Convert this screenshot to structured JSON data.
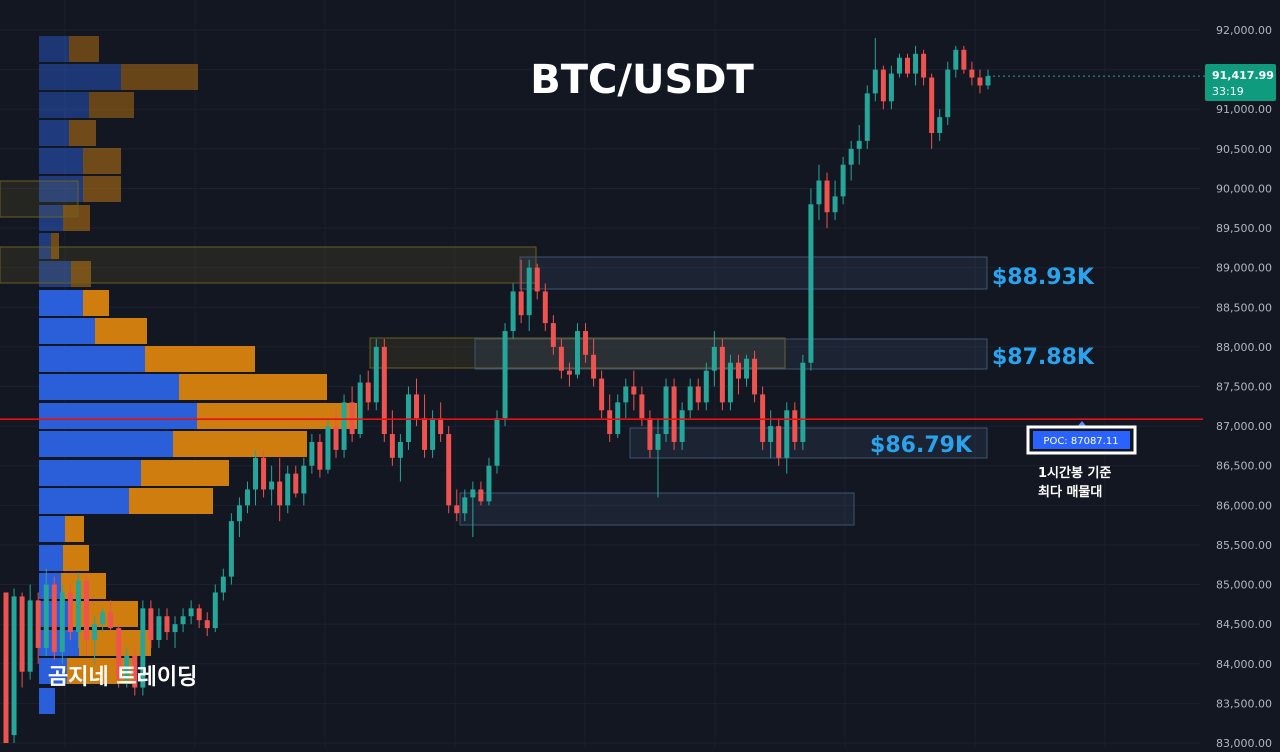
{
  "chart_data": {
    "type": "candlestick",
    "title": "BTC/USDT",
    "watermark": "곰지네 트레이딩",
    "y_axis": {
      "ticks": [
        92000,
        91500,
        91000,
        90500,
        90000,
        89500,
        89000,
        88500,
        88000,
        87500,
        87000,
        86500,
        86000,
        85500,
        85000,
        84500,
        84000,
        83500,
        83000
      ],
      "tick_labels": [
        "92,000.00",
        "91,500.00",
        "91,000.00",
        "90,500.00",
        "90,000.00",
        "89,500.00",
        "89,000.00",
        "88,500.00",
        "88,000.00",
        "87,500.00",
        "87,000.00",
        "86,500.00",
        "86,000.00",
        "85,500.00",
        "85,000.00",
        "84,500.00",
        "84,000.00",
        "83,500.00",
        "83,000.00"
      ],
      "range": [
        83000,
        92000
      ]
    },
    "last_price": {
      "value": 91417.99,
      "label": "91,417.99",
      "countdown": "33:19"
    },
    "poc": {
      "value": 87087.11,
      "label": "POC: 87087.11",
      "note_line1": "1시간봉 기준",
      "note_line2": "최다 매물대"
    },
    "levels": [
      {
        "label": "$88.93K",
        "low": 88730,
        "high": 89130
      },
      {
        "label": "$87.88K",
        "low": 87730,
        "high": 88090
      },
      {
        "label": "$86.79K",
        "low": 86620,
        "high": 86980
      }
    ],
    "candles": [
      [
        84900,
        84900,
        83000,
        83000
      ],
      [
        83100,
        84950,
        83000,
        84850
      ],
      [
        84850,
        84900,
        83700,
        83900
      ],
      [
        83900,
        85000,
        83800,
        84800
      ],
      [
        84800,
        84900,
        84000,
        84200
      ],
      [
        84200,
        85200,
        84100,
        85000
      ],
      [
        85000,
        85100,
        84050,
        84150
      ],
      [
        84150,
        85000,
        84000,
        84900
      ],
      [
        84900,
        85000,
        84300,
        84400
      ],
      [
        84400,
        85150,
        84200,
        85050
      ],
      [
        85050,
        85100,
        84100,
        84300
      ],
      [
        84300,
        84600,
        84000,
        84500
      ],
      [
        84500,
        84700,
        84400,
        84650
      ],
      [
        84650,
        84800,
        84400,
        84450
      ],
      [
        84450,
        84500,
        83700,
        83800
      ],
      [
        83800,
        84200,
        83700,
        84100
      ],
      [
        84100,
        84200,
        83600,
        83700
      ],
      [
        83700,
        84800,
        83600,
        84700
      ],
      [
        84700,
        84800,
        84200,
        84300
      ],
      [
        84300,
        84700,
        84200,
        84600
      ],
      [
        84600,
        84700,
        84300,
        84400
      ],
      [
        84400,
        84600,
        84200,
        84500
      ],
      [
        84500,
        84700,
        84400,
        84600
      ],
      [
        84600,
        84800,
        84500,
        84700
      ],
      [
        84700,
        84750,
        84450,
        84550
      ],
      [
        84550,
        84650,
        84350,
        84450
      ],
      [
        84450,
        85000,
        84400,
        84900
      ],
      [
        84900,
        85200,
        84800,
        85100
      ],
      [
        85100,
        85900,
        85000,
        85800
      ],
      [
        85800,
        86100,
        85600,
        86000
      ],
      [
        86000,
        86300,
        85900,
        86200
      ],
      [
        86200,
        86700,
        86000,
        86600
      ],
      [
        86600,
        86700,
        86100,
        86200
      ],
      [
        86200,
        86500,
        86000,
        86300
      ],
      [
        86300,
        86600,
        85800,
        86000
      ],
      [
        86000,
        86500,
        85900,
        86400
      ],
      [
        86400,
        86500,
        86100,
        86150
      ],
      [
        86150,
        86600,
        86000,
        86500
      ],
      [
        86500,
        86900,
        86400,
        86800
      ],
      [
        86800,
        86900,
        86350,
        86450
      ],
      [
        86450,
        87100,
        86400,
        87000
      ],
      [
        87000,
        87200,
        86600,
        86700
      ],
      [
        86700,
        87400,
        86600,
        87300
      ],
      [
        87300,
        87500,
        86800,
        86900
      ],
      [
        86900,
        87650,
        86850,
        87550
      ],
      [
        87550,
        87700,
        87200,
        87300
      ],
      [
        87300,
        88100,
        87200,
        88000
      ],
      [
        88000,
        88100,
        86800,
        86900
      ],
      [
        86900,
        87200,
        86500,
        86600
      ],
      [
        86600,
        86900,
        86300,
        86800
      ],
      [
        86800,
        87500,
        86700,
        87400
      ],
      [
        87400,
        87600,
        87000,
        87100
      ],
      [
        87100,
        87400,
        86600,
        86700
      ],
      [
        86700,
        87200,
        86600,
        87100
      ],
      [
        87100,
        87300,
        86800,
        86900
      ],
      [
        86900,
        87000,
        85900,
        86000
      ],
      [
        86000,
        86200,
        85800,
        85900
      ],
      [
        85900,
        86200,
        85800,
        86100
      ],
      [
        86100,
        86300,
        85600,
        86200
      ],
      [
        86200,
        86300,
        86000,
        86050
      ],
      [
        86050,
        86600,
        86000,
        86500
      ],
      [
        86500,
        87200,
        86400,
        87100
      ],
      [
        87100,
        88300,
        87000,
        88200
      ],
      [
        88200,
        88800,
        88100,
        88700
      ],
      [
        88700,
        89100,
        88300,
        88400
      ],
      [
        88400,
        89100,
        88200,
        89000
      ],
      [
        89000,
        89050,
        88600,
        88700
      ],
      [
        88700,
        88800,
        88200,
        88300
      ],
      [
        88300,
        88400,
        87900,
        88000
      ],
      [
        88000,
        88100,
        87600,
        87700
      ],
      [
        87700,
        87800,
        87500,
        87650
      ],
      [
        87650,
        88300,
        87600,
        88200
      ],
      [
        88200,
        88300,
        87800,
        87900
      ],
      [
        87900,
        88100,
        87500,
        87600
      ],
      [
        87600,
        87700,
        87100,
        87200
      ],
      [
        87200,
        87400,
        86800,
        86900
      ],
      [
        86900,
        87400,
        86850,
        87300
      ],
      [
        87300,
        87600,
        87100,
        87500
      ],
      [
        87500,
        87700,
        87200,
        87400
      ],
      [
        87400,
        87500,
        87000,
        87100
      ],
      [
        87100,
        87200,
        86600,
        86700
      ],
      [
        86700,
        87100,
        86100,
        86900
      ],
      [
        86900,
        87600,
        86800,
        87500
      ],
      [
        87500,
        87600,
        86700,
        86800
      ],
      [
        86800,
        87300,
        86700,
        87200
      ],
      [
        87200,
        87600,
        87100,
        87500
      ],
      [
        87500,
        87600,
        87200,
        87300
      ],
      [
        87300,
        87800,
        87200,
        87700
      ],
      [
        87700,
        88200,
        87500,
        88000
      ],
      [
        88000,
        88100,
        87200,
        87300
      ],
      [
        87300,
        87900,
        87200,
        87800
      ],
      [
        87800,
        87900,
        87400,
        87600
      ],
      [
        87600,
        87900,
        87500,
        87850
      ],
      [
        87850,
        87950,
        87300,
        87400
      ],
      [
        87400,
        87500,
        86700,
        86800
      ],
      [
        86800,
        87200,
        86600,
        87000
      ],
      [
        87000,
        87100,
        86500,
        86600
      ],
      [
        86600,
        87300,
        86400,
        87200
      ],
      [
        87200,
        87300,
        86700,
        86800
      ],
      [
        86800,
        87900,
        86700,
        87800
      ],
      [
        87800,
        90000,
        87700,
        89800
      ],
      [
        89800,
        90300,
        89600,
        90100
      ],
      [
        90100,
        90200,
        89500,
        89700
      ],
      [
        89700,
        90100,
        89600,
        89900
      ],
      [
        89900,
        90400,
        89800,
        90300
      ],
      [
        90300,
        90600,
        90100,
        90500
      ],
      [
        90500,
        90800,
        90300,
        90600
      ],
      [
        90600,
        91300,
        90500,
        91200
      ],
      [
        91200,
        91900,
        91100,
        91500
      ],
      [
        91500,
        91550,
        91000,
        91100
      ],
      [
        91100,
        91550,
        91000,
        91450
      ],
      [
        91450,
        91700,
        91400,
        91650
      ],
      [
        91650,
        91700,
        91400,
        91450
      ],
      [
        91450,
        91800,
        91300,
        91700
      ],
      [
        91700,
        91750,
        91300,
        91400
      ],
      [
        91400,
        91450,
        90500,
        90700
      ],
      [
        90700,
        91000,
        90600,
        90900
      ],
      [
        90900,
        91600,
        90800,
        91500
      ],
      [
        91500,
        91800,
        91400,
        91750
      ],
      [
        91750,
        91800,
        91450,
        91500
      ],
      [
        91500,
        91600,
        91300,
        91400
      ],
      [
        91400,
        91500,
        91200,
        91300
      ],
      [
        91300,
        91500,
        91250,
        91417.99
      ]
    ]
  },
  "colors": {
    "background": "#131722",
    "up": "#26a69a",
    "down": "#ef5350",
    "buy_volume": "#2b5fd9",
    "sell_volume": "#d07d10",
    "poc_line": "#e81010",
    "level_label": "#29a3ee",
    "last_price_badge": "#0f9b7e",
    "poc_badge": "#2962ff"
  }
}
